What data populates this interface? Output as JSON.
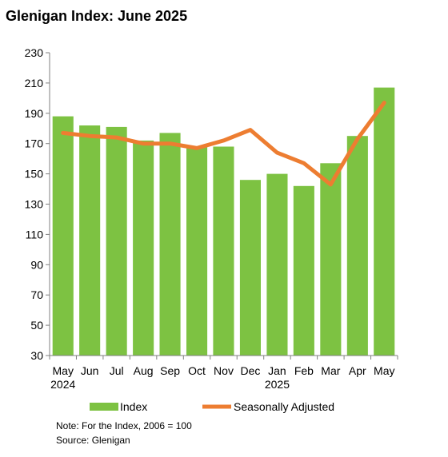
{
  "chart_data": {
    "type": "bar",
    "title": "Glenigan Index: June 2025",
    "categories": [
      "May",
      "Jun",
      "Jul",
      "Aug",
      "Sep",
      "Oct",
      "Nov",
      "Dec",
      "Jan",
      "Feb",
      "Mar",
      "Apr",
      "May"
    ],
    "year_labels": [
      "2024",
      "",
      "",
      "",
      "",
      "",
      "",
      "",
      "2025",
      "",
      "",
      "",
      ""
    ],
    "y_ticks": [
      "30",
      "50",
      "70",
      "90",
      "110",
      "130",
      "150",
      "170",
      "190",
      "210",
      "230"
    ],
    "ylim": [
      30,
      230
    ],
    "grid": false,
    "legend_position": "bottom",
    "series": [
      {
        "name": "Index",
        "type": "bar",
        "color": "#7dc242",
        "values": [
          188,
          182,
          181,
          172,
          177,
          168,
          168,
          146,
          150,
          142,
          157,
          175,
          207
        ]
      },
      {
        "name": "Seasonally Adjusted",
        "type": "line",
        "color": "#ed7d31",
        "values": [
          177,
          175,
          174,
          170,
          170,
          167,
          172,
          179,
          164,
          157,
          143,
          173,
          197
        ]
      }
    ],
    "notes": [
      "Note: For the Index, 2006 = 100",
      "Source: Glenigan"
    ]
  }
}
